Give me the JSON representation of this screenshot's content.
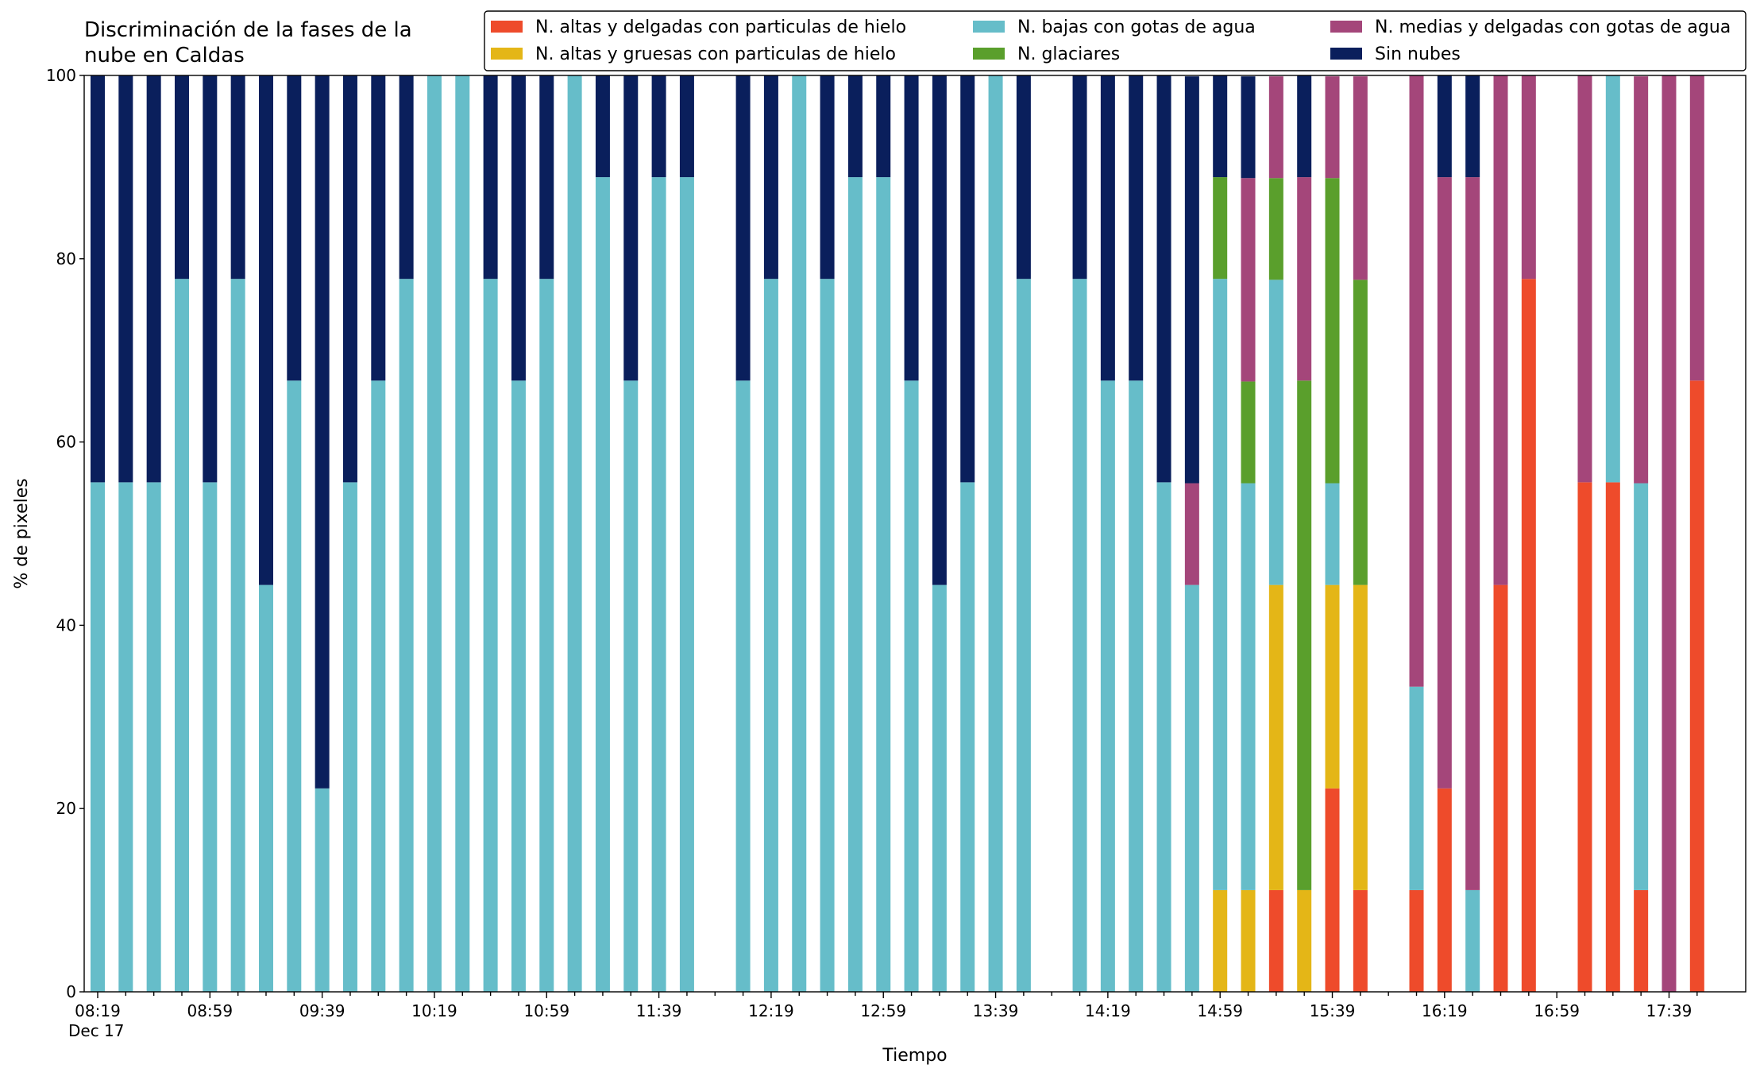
{
  "chart_data": {
    "type": "stacked_bar",
    "title": "Discriminación de la fases de la\nnube en Caldas",
    "xlabel": "Tiempo",
    "ylabel": "% de pixeles",
    "x_date": "Dec 17",
    "categories": [
      "08:19",
      null,
      null,
      null,
      "08:59",
      null,
      null,
      null,
      "09:39",
      null,
      null,
      null,
      "10:19",
      null,
      null,
      null,
      "10:59",
      null,
      null,
      null,
      "11:39",
      null,
      null,
      null,
      "12:19",
      null,
      null,
      null,
      "12:59",
      null,
      null,
      null,
      "13:39",
      null,
      null,
      null,
      "14:19",
      null,
      null,
      null,
      "14:59",
      null,
      null,
      null,
      "15:39",
      null,
      null,
      null,
      "16:19",
      null,
      null,
      null,
      "16:59",
      null,
      null,
      null,
      "17:39",
      null
    ],
    "ylim": [
      0,
      100
    ],
    "yticks": [
      0,
      20,
      40,
      60,
      80,
      100
    ],
    "legend": "top-right",
    "series": [
      {
        "name": "N. altas y delgadas con particulas de hielo",
        "color": "#ee4b2b",
        "values": [
          0,
          0,
          0,
          0,
          0,
          0,
          0,
          0,
          0,
          0,
          0,
          0,
          0,
          0,
          0,
          0,
          0,
          0,
          0,
          0,
          0,
          0,
          null,
          0,
          0,
          0,
          0,
          0,
          0,
          0,
          0,
          0,
          0,
          0,
          null,
          0,
          0,
          0,
          0,
          0,
          0,
          0,
          11.1,
          0,
          22.2,
          11.1,
          null,
          11.1,
          22.2,
          0,
          44.4,
          77.8,
          null,
          55.6,
          55.6,
          11.1,
          0,
          66.7
        ]
      },
      {
        "name": "N. altas y gruesas con particulas de hielo",
        "color": "#e4b617",
        "values": [
          0,
          0,
          0,
          0,
          0,
          0,
          0,
          0,
          0,
          0,
          0,
          0,
          0,
          0,
          0,
          0,
          0,
          0,
          0,
          0,
          0,
          0,
          null,
          0,
          0,
          0,
          0,
          0,
          0,
          0,
          0,
          0,
          0,
          0,
          null,
          0,
          0,
          0,
          0,
          0,
          11.1,
          11.1,
          33.3,
          11.1,
          22.2,
          33.3,
          null,
          0,
          0,
          0,
          0,
          0,
          null,
          0,
          0,
          0,
          0,
          0
        ]
      },
      {
        "name": "N. bajas con gotas de agua",
        "color": "#66bdc9",
        "values": [
          55.6,
          55.6,
          55.6,
          77.8,
          55.6,
          77.8,
          44.4,
          66.7,
          22.2,
          55.6,
          66.7,
          77.8,
          100,
          100,
          77.8,
          66.7,
          77.8,
          100,
          88.9,
          66.7,
          88.9,
          88.9,
          null,
          66.7,
          77.8,
          100,
          77.8,
          88.9,
          88.9,
          66.7,
          44.4,
          55.6,
          100,
          77.8,
          null,
          77.8,
          66.7,
          66.7,
          55.6,
          44.4,
          66.7,
          44.4,
          33.3,
          0,
          11.1,
          0,
          null,
          22.2,
          0,
          11.1,
          0,
          0,
          null,
          0,
          44.4,
          44.4,
          0,
          0
        ]
      },
      {
        "name": "N. glaciares",
        "color": "#5a9f2c",
        "values": [
          0,
          0,
          0,
          0,
          0,
          0,
          0,
          0,
          0,
          0,
          0,
          0,
          0,
          0,
          0,
          0,
          0,
          0,
          0,
          0,
          0,
          0,
          null,
          0,
          0,
          0,
          0,
          0,
          0,
          0,
          0,
          0,
          0,
          0,
          null,
          0,
          0,
          0,
          0,
          0,
          11.1,
          11.1,
          11.1,
          55.6,
          33.3,
          33.3,
          null,
          0,
          0,
          0,
          0,
          0,
          null,
          0,
          0,
          0,
          0,
          0
        ]
      },
      {
        "name": "N. medias y delgadas con gotas de agua",
        "color": "#a4467a",
        "values": [
          0,
          0,
          0,
          0,
          0,
          0,
          0,
          0,
          0,
          0,
          0,
          0,
          0,
          0,
          0,
          0,
          0,
          0,
          0,
          0,
          0,
          0,
          null,
          0,
          0,
          0,
          0,
          0,
          0,
          0,
          0,
          0,
          0,
          0,
          null,
          0,
          0,
          0,
          0,
          11.1,
          0,
          22.2,
          11.1,
          22.2,
          11.1,
          22.2,
          null,
          66.7,
          66.7,
          77.8,
          55.6,
          22.2,
          null,
          44.4,
          0,
          44.4,
          100,
          33.3
        ]
      },
      {
        "name": "Sin nubes",
        "color": "#0a1f5c",
        "values": [
          44.4,
          44.4,
          44.4,
          22.2,
          44.4,
          22.2,
          55.6,
          33.3,
          77.8,
          44.4,
          33.3,
          22.2,
          0,
          0,
          22.2,
          33.3,
          22.2,
          0,
          11.1,
          33.3,
          11.1,
          11.1,
          null,
          33.3,
          22.2,
          0,
          22.2,
          11.1,
          11.1,
          33.3,
          55.6,
          44.4,
          0,
          22.2,
          null,
          22.2,
          33.3,
          33.3,
          44.4,
          44.4,
          11.1,
          11.1,
          0,
          11.1,
          0,
          0,
          null,
          0,
          11.1,
          11.1,
          0,
          0,
          null,
          0,
          0,
          0,
          0,
          0
        ]
      }
    ]
  }
}
